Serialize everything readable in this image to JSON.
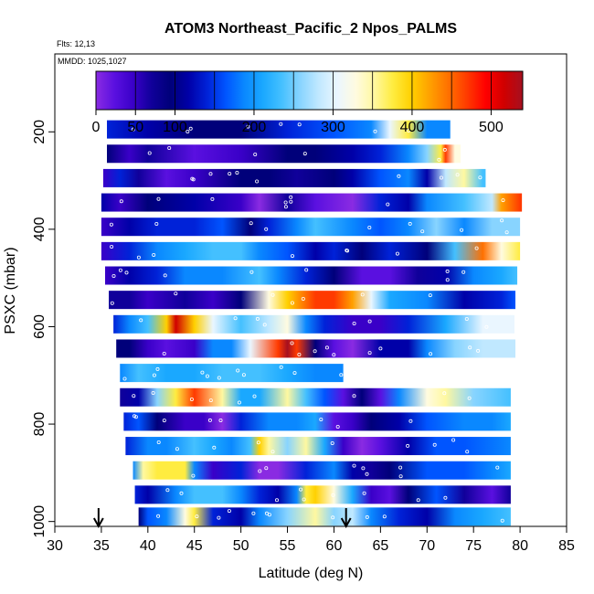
{
  "chart_data": {
    "type": "heatmap",
    "title": "ATOM3 Northeast_Pacific_2 Npos_PALMS",
    "annotations": [
      "Flts: 12,13",
      "MMDD: 1025,1027"
    ],
    "xlabel": "Latitude (deg N)",
    "ylabel": "PSXC (mbar)",
    "xlim": [
      30,
      85
    ],
    "ylim": [
      1010,
      40
    ],
    "y_reversed": true,
    "xticks": [
      30,
      35,
      40,
      45,
      50,
      55,
      60,
      65,
      70,
      75,
      80,
      85
    ],
    "yticks": [
      200,
      400,
      600,
      800,
      1000
    ],
    "colorbar": {
      "min": 0,
      "max": 540,
      "ticks": [
        0,
        50,
        100,
        200,
        300,
        400,
        500
      ],
      "colors": [
        "#8a2be2",
        "#5a10e0",
        "#3a00c8",
        "#10009a",
        "#00007a",
        "#0000a8",
        "#0022d8",
        "#0055ff",
        "#0a88ff",
        "#1aa8ff",
        "#44c0ff",
        "#88d4ff",
        "#c0e8ff",
        "#eaf6ff",
        "#fffbe0",
        "#fff8a0",
        "#ffec40",
        "#ffd000",
        "#ffa000",
        "#ff7000",
        "#ff3a00",
        "#ff0000",
        "#d00000",
        "#a51020"
      ]
    },
    "arrows_at_latitude": [
      34.7,
      61.3
    ],
    "bands": [
      {
        "p": 195,
        "x0": 35.6,
        "x1": 72.5,
        "stops": [
          [
            35.6,
            140
          ],
          [
            40,
            120
          ],
          [
            45,
            100
          ],
          [
            50,
            110
          ],
          [
            55,
            150
          ],
          [
            60,
            170
          ],
          [
            64,
            190
          ],
          [
            66,
            300
          ],
          [
            68,
            380
          ],
          [
            70,
            200
          ]
        ]
      },
      {
        "p": 245,
        "x0": 35.6,
        "x1": 73.6,
        "stops": [
          [
            35.6,
            110
          ],
          [
            38,
            60
          ],
          [
            40,
            80
          ],
          [
            45,
            40
          ],
          [
            50,
            60
          ],
          [
            55,
            90
          ],
          [
            58,
            110
          ],
          [
            62,
            120
          ],
          [
            65,
            150
          ],
          [
            68,
            200
          ],
          [
            70,
            260
          ],
          [
            71.5,
            380
          ],
          [
            72,
            460
          ],
          [
            73,
            320
          ]
        ]
      },
      {
        "p": 295,
        "x0": 35.2,
        "x1": 76.3,
        "stops": [
          [
            35.2,
            60
          ],
          [
            37,
            150
          ],
          [
            39,
            80
          ],
          [
            42,
            40
          ],
          [
            45,
            60
          ],
          [
            50,
            90
          ],
          [
            53,
            110
          ],
          [
            56,
            70
          ],
          [
            60,
            90
          ],
          [
            62,
            130
          ],
          [
            65,
            160
          ],
          [
            68,
            200
          ],
          [
            70,
            130
          ],
          [
            72,
            280
          ],
          [
            74,
            350
          ],
          [
            76,
            240
          ]
        ]
      },
      {
        "p": 345,
        "x0": 35.0,
        "x1": 80.2,
        "stops": [
          [
            35,
            120
          ],
          [
            37,
            60
          ],
          [
            40,
            100
          ],
          [
            45,
            130
          ],
          [
            50,
            60
          ],
          [
            52,
            0
          ],
          [
            55,
            80
          ],
          [
            58,
            40
          ],
          [
            62,
            20
          ],
          [
            65,
            150
          ],
          [
            68,
            120
          ],
          [
            70,
            180
          ],
          [
            74,
            230
          ],
          [
            77,
            280
          ],
          [
            78,
            420
          ],
          [
            80,
            450
          ]
        ]
      },
      {
        "p": 395,
        "x0": 35.0,
        "x1": 80.0,
        "stops": [
          [
            35,
            50
          ],
          [
            38,
            120
          ],
          [
            41,
            140
          ],
          [
            45,
            150
          ],
          [
            48,
            170
          ],
          [
            51,
            100
          ],
          [
            53,
            150
          ],
          [
            56,
            200
          ],
          [
            58,
            240
          ],
          [
            62,
            200
          ],
          [
            65,
            170
          ],
          [
            68,
            180
          ],
          [
            71,
            250
          ],
          [
            74,
            200
          ],
          [
            77,
            260
          ],
          [
            80,
            250
          ]
        ]
      },
      {
        "p": 445,
        "x0": 35.0,
        "x1": 80.0,
        "stops": [
          [
            35,
            60
          ],
          [
            38,
            150
          ],
          [
            41,
            200
          ],
          [
            44,
            220
          ],
          [
            47,
            230
          ],
          [
            50,
            240
          ],
          [
            52,
            200
          ],
          [
            55,
            160
          ],
          [
            58,
            120
          ],
          [
            60,
            150
          ],
          [
            63,
            100
          ],
          [
            66,
            140
          ],
          [
            70,
            90
          ],
          [
            73,
            230
          ],
          [
            76,
            430
          ],
          [
            78,
            330
          ],
          [
            80,
            370
          ]
        ]
      },
      {
        "p": 495,
        "x0": 35.4,
        "x1": 79.7,
        "stops": [
          [
            35.4,
            60
          ],
          [
            38,
            120
          ],
          [
            41,
            150
          ],
          [
            44,
            180
          ],
          [
            48,
            190
          ],
          [
            52,
            230
          ],
          [
            54,
            200
          ],
          [
            57,
            150
          ],
          [
            60,
            90
          ],
          [
            63,
            40
          ],
          [
            66,
            30
          ],
          [
            69,
            70
          ],
          [
            72,
            120
          ],
          [
            75,
            200
          ],
          [
            78,
            220
          ],
          [
            79.7,
            240
          ]
        ]
      },
      {
        "p": 545,
        "x0": 35.8,
        "x1": 79.5,
        "stops": [
          [
            35.8,
            80
          ],
          [
            38,
            70
          ],
          [
            40,
            50
          ],
          [
            44,
            80
          ],
          [
            47,
            60
          ],
          [
            50,
            90
          ],
          [
            53,
            330
          ],
          [
            55,
            400
          ],
          [
            58,
            450
          ],
          [
            60,
            470
          ],
          [
            62,
            420
          ],
          [
            64,
            300
          ],
          [
            66,
            210
          ],
          [
            70,
            180
          ],
          [
            74,
            130
          ],
          [
            78,
            140
          ],
          [
            79.5,
            160
          ]
        ]
      },
      {
        "p": 595,
        "x0": 36.3,
        "x1": 79.4,
        "stops": [
          [
            36.3,
            150
          ],
          [
            38,
            200
          ],
          [
            40,
            240
          ],
          [
            42,
            400
          ],
          [
            43,
            500
          ],
          [
            45,
            400
          ],
          [
            47,
            300
          ],
          [
            50,
            230
          ],
          [
            53,
            290
          ],
          [
            55,
            320
          ],
          [
            57,
            200
          ],
          [
            59,
            140
          ],
          [
            62,
            60
          ],
          [
            65,
            60
          ],
          [
            68,
            150
          ],
          [
            72,
            210
          ],
          [
            76,
            300
          ],
          [
            79.4,
            310
          ]
        ]
      },
      {
        "p": 645,
        "x0": 36.6,
        "x1": 79.5,
        "stops": [
          [
            36.6,
            110
          ],
          [
            38,
            90
          ],
          [
            40,
            50
          ],
          [
            42,
            40
          ],
          [
            45,
            60
          ],
          [
            47,
            200
          ],
          [
            49,
            180
          ],
          [
            51,
            300
          ],
          [
            54,
            470
          ],
          [
            55,
            520
          ],
          [
            56,
            450
          ],
          [
            58,
            110
          ],
          [
            60,
            40
          ],
          [
            62,
            5
          ],
          [
            65,
            120
          ],
          [
            68,
            130
          ],
          [
            70,
            190
          ],
          [
            73,
            250
          ],
          [
            76,
            280
          ],
          [
            79.5,
            290
          ]
        ]
      },
      {
        "p": 695,
        "x0": 37.0,
        "x1": 61.0,
        "stops": [
          [
            37,
            200
          ],
          [
            39,
            230
          ],
          [
            42,
            210
          ],
          [
            45,
            220
          ],
          [
            48,
            230
          ],
          [
            52,
            230
          ],
          [
            55,
            210
          ],
          [
            58,
            190
          ],
          [
            61,
            180
          ]
        ]
      },
      {
        "p": 745,
        "x0": 37.0,
        "x1": 79.0,
        "stops": [
          [
            37,
            70
          ],
          [
            39,
            130
          ],
          [
            41,
            250
          ],
          [
            43,
            380
          ],
          [
            45,
            460
          ],
          [
            48,
            350
          ],
          [
            50,
            210
          ],
          [
            52,
            220
          ],
          [
            55,
            340
          ],
          [
            57,
            230
          ],
          [
            59,
            170
          ],
          [
            61,
            40
          ],
          [
            63,
            90
          ],
          [
            65,
            40
          ],
          [
            67,
            200
          ],
          [
            70,
            330
          ],
          [
            72,
            350
          ],
          [
            75,
            250
          ],
          [
            79,
            230
          ]
        ]
      },
      {
        "p": 795,
        "x0": 37.4,
        "x1": 79.0,
        "stops": [
          [
            37.4,
            150
          ],
          [
            39,
            160
          ],
          [
            41,
            90
          ],
          [
            44,
            60
          ],
          [
            46,
            50
          ],
          [
            48,
            20
          ],
          [
            50,
            140
          ],
          [
            53,
            180
          ],
          [
            56,
            190
          ],
          [
            58,
            220
          ],
          [
            60,
            30
          ],
          [
            62,
            60
          ],
          [
            64,
            90
          ],
          [
            67,
            120
          ],
          [
            70,
            160
          ],
          [
            74,
            200
          ],
          [
            77,
            180
          ],
          [
            79,
            210
          ]
        ]
      },
      {
        "p": 845,
        "x0": 37.6,
        "x1": 79.0,
        "stops": [
          [
            37.6,
            150
          ],
          [
            40,
            180
          ],
          [
            42,
            200
          ],
          [
            45,
            230
          ],
          [
            47,
            210
          ],
          [
            49,
            200
          ],
          [
            51,
            230
          ],
          [
            52,
            400
          ],
          [
            53,
            350
          ],
          [
            55,
            260
          ],
          [
            57,
            340
          ],
          [
            59,
            210
          ],
          [
            61,
            60
          ],
          [
            63,
            20
          ],
          [
            65,
            40
          ],
          [
            68,
            130
          ],
          [
            71,
            160
          ],
          [
            74,
            170
          ],
          [
            79,
            180
          ]
        ]
      },
      {
        "p": 895,
        "x0": 38.4,
        "x1": 79.0,
        "stops": [
          [
            38.4,
            200
          ],
          [
            39.5,
            340
          ],
          [
            41,
            360
          ],
          [
            44,
            370
          ],
          [
            45,
            200
          ],
          [
            47,
            60
          ],
          [
            50,
            140
          ],
          [
            52,
            0
          ],
          [
            54,
            10
          ],
          [
            57,
            150
          ],
          [
            60,
            180
          ],
          [
            62,
            130
          ],
          [
            64,
            80
          ],
          [
            66,
            110
          ],
          [
            70,
            170
          ],
          [
            74,
            170
          ],
          [
            77,
            200
          ],
          [
            79,
            210
          ]
        ]
      },
      {
        "p": 945,
        "x0": 38.6,
        "x1": 79.0,
        "stops": [
          [
            38.6,
            150
          ],
          [
            40,
            120
          ],
          [
            43,
            180
          ],
          [
            45,
            230
          ],
          [
            48,
            240
          ],
          [
            50,
            200
          ],
          [
            52,
            150
          ],
          [
            54,
            120
          ],
          [
            56,
            200
          ],
          [
            57,
            360
          ],
          [
            58,
            400
          ],
          [
            60,
            320
          ],
          [
            62,
            220
          ],
          [
            64,
            60
          ],
          [
            66,
            40
          ],
          [
            68,
            110
          ],
          [
            71,
            160
          ],
          [
            74,
            80
          ],
          [
            77,
            40
          ],
          [
            79,
            70
          ]
        ]
      },
      {
        "p": 990,
        "x0": 39.0,
        "x1": 79.0,
        "stops": [
          [
            39,
            100
          ],
          [
            40,
            170
          ],
          [
            42,
            190
          ],
          [
            44,
            330
          ],
          [
            45,
            380
          ],
          [
            47,
            150
          ],
          [
            50,
            130
          ],
          [
            52,
            180
          ],
          [
            55,
            250
          ],
          [
            58,
            350
          ],
          [
            60,
            260
          ],
          [
            62,
            280
          ],
          [
            64,
            200
          ],
          [
            67,
            150
          ],
          [
            70,
            130
          ],
          [
            73,
            190
          ],
          [
            76,
            220
          ],
          [
            79,
            230
          ]
        ]
      }
    ]
  }
}
